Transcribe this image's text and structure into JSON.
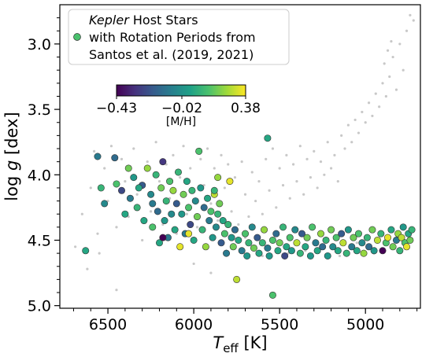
{
  "chart_data": {
    "type": "scatter",
    "xlabel_italic": "T",
    "xlabel_sub": "eff",
    "xlabel_rest": " [K]",
    "ylabel_pre": "log ",
    "ylabel_italic": "g",
    "ylabel_rest": " [dex]",
    "xlim": [
      6780,
      4680
    ],
    "ylim": [
      5.02,
      2.7
    ],
    "x_ticks": [
      6500,
      6000,
      5500,
      5000
    ],
    "x_tick_labels": [
      "6500",
      "6000",
      "5500",
      "5000"
    ],
    "y_ticks": [
      3.0,
      3.5,
      4.0,
      4.5,
      5.0
    ],
    "y_tick_labels": [
      "3.0",
      "3.5",
      "4.0",
      "4.5",
      "5.0"
    ],
    "legend": {
      "line1_italic": "Kepler",
      "line1_rest": " Host Stars",
      "line2": "with Rotation Periods from",
      "line3": "Santos et al. (2019, 2021)",
      "placement": "top-left"
    },
    "colorbar": {
      "ticks": [
        -0.43,
        -0.02,
        0.38
      ],
      "tick_labels": [
        "−0.43",
        "−0.02",
        "0.38"
      ],
      "label": "[M/H]",
      "colormap": "viridis"
    },
    "colors": {
      "background_points": "#c8c8c8",
      "marker_edge": "#333333",
      "viridis": [
        "#440154",
        "#46327e",
        "#365c8d",
        "#277f8e",
        "#1fa187",
        "#4ac16d",
        "#a0da39",
        "#fde725"
      ]
    },
    "series": [
      {
        "name": "Kepler Host Stars with Rotation Periods from Santos et al. (2019, 2021)",
        "points": [
          [
            6630,
            4.58,
            0.05
          ],
          [
            6560,
            3.86,
            -0.1
          ],
          [
            6540,
            4.1,
            0.1
          ],
          [
            6520,
            4.22,
            -0.05
          ],
          [
            6460,
            3.87,
            -0.15
          ],
          [
            6450,
            4.07,
            0.15
          ],
          [
            6420,
            4.12,
            -0.25
          ],
          [
            6400,
            4.3,
            0.05
          ],
          [
            6380,
            3.95,
            0.2
          ],
          [
            6370,
            4.18,
            -0.1
          ],
          [
            6350,
            4.02,
            0.0
          ],
          [
            6330,
            4.25,
            0.1
          ],
          [
            6300,
            4.08,
            -0.2
          ],
          [
            6290,
            4.35,
            0.05
          ],
          [
            6270,
            3.95,
            0.25
          ],
          [
            6250,
            4.15,
            -0.05
          ],
          [
            6240,
            4.4,
            0.15
          ],
          [
            6220,
            4.0,
            0.1
          ],
          [
            6210,
            4.28,
            -0.15
          ],
          [
            6200,
            4.52,
            0.05
          ],
          [
            6190,
            4.1,
            0.2
          ],
          [
            6180,
            3.9,
            -0.3
          ],
          [
            6170,
            4.35,
            0.0
          ],
          [
            6160,
            4.2,
            0.1
          ],
          [
            6150,
            4.48,
            -0.1
          ],
          [
            6140,
            4.05,
            0.15
          ],
          [
            6130,
            4.3,
            -0.05
          ],
          [
            6120,
            4.12,
            0.25
          ],
          [
            6110,
            4.42,
            0.05
          ],
          [
            6100,
            4.22,
            -0.2
          ],
          [
            6090,
            3.98,
            0.1
          ],
          [
            6080,
            4.55,
            0.35
          ],
          [
            6070,
            4.3,
            0.0
          ],
          [
            6060,
            4.15,
            0.2
          ],
          [
            6050,
            4.45,
            -0.1
          ],
          [
            6040,
            4.05,
            0.05
          ],
          [
            6030,
            4.25,
            0.15
          ],
          [
            6020,
            4.38,
            -0.25
          ],
          [
            6010,
            4.12,
            0.1
          ],
          [
            6000,
            4.5,
            0.05
          ],
          [
            5990,
            4.2,
            -0.05
          ],
          [
            5980,
            4.32,
            0.2
          ],
          [
            5970,
            3.82,
            0.15
          ],
          [
            5960,
            4.1,
            0.0
          ],
          [
            5950,
            4.42,
            0.1
          ],
          [
            5940,
            4.25,
            -0.15
          ],
          [
            5930,
            4.55,
            0.25
          ],
          [
            5920,
            4.18,
            0.05
          ],
          [
            5910,
            4.35,
            -0.1
          ],
          [
            5900,
            4.28,
            0.15
          ],
          [
            5890,
            4.48,
            0.0
          ],
          [
            5880,
            4.15,
            0.3
          ],
          [
            5870,
            4.4,
            -0.05
          ],
          [
            5860,
            4.3,
            0.1
          ],
          [
            5850,
            4.22,
            0.2
          ],
          [
            5840,
            4.52,
            -0.2
          ],
          [
            5830,
            4.35,
            0.05
          ],
          [
            5820,
            4.45,
            0.15
          ],
          [
            5810,
            4.6,
            -0.1
          ],
          [
            5800,
            4.38,
            0.1
          ],
          [
            5790,
            4.05,
            0.35
          ],
          [
            5780,
            4.48,
            0.0
          ],
          [
            5770,
            4.55,
            0.2
          ],
          [
            5760,
            4.42,
            -0.15
          ],
          [
            5750,
            4.8,
            0.3
          ],
          [
            5740,
            4.5,
            0.05
          ],
          [
            5720,
            4.58,
            -0.1
          ],
          [
            5700,
            4.45,
            0.15
          ],
          [
            5690,
            4.62,
            0.0
          ],
          [
            5680,
            4.52,
            0.1
          ],
          [
            5660,
            4.4,
            -0.05
          ],
          [
            5650,
            4.56,
            0.2
          ],
          [
            5630,
            4.48,
            -0.2
          ],
          [
            5620,
            4.6,
            0.05
          ],
          [
            5600,
            4.52,
            0.1
          ],
          [
            5590,
            4.42,
            0.25
          ],
          [
            5570,
            4.56,
            -0.1
          ],
          [
            5560,
            4.62,
            0.0
          ],
          [
            5540,
            4.5,
            0.15
          ],
          [
            5520,
            4.45,
            -0.15
          ],
          [
            5510,
            4.58,
            0.05
          ],
          [
            5500,
            4.52,
            0.2
          ],
          [
            5480,
            4.4,
            0.1
          ],
          [
            5470,
            4.62,
            -0.25
          ],
          [
            5460,
            4.55,
            0.05
          ],
          [
            5440,
            4.48,
            0.15
          ],
          [
            5430,
            4.58,
            0.0
          ],
          [
            5410,
            4.42,
            -0.05
          ],
          [
            5400,
            4.52,
            0.3
          ],
          [
            5380,
            4.6,
            0.1
          ],
          [
            5370,
            4.45,
            -0.2
          ],
          [
            5350,
            4.55,
            0.05
          ],
          [
            5340,
            4.48,
            0.2
          ],
          [
            5320,
            4.62,
            0.0
          ],
          [
            5310,
            4.4,
            0.15
          ],
          [
            5290,
            4.52,
            -0.1
          ],
          [
            5280,
            4.58,
            0.05
          ],
          [
            5260,
            4.45,
            0.25
          ],
          [
            5250,
            4.55,
            -0.15
          ],
          [
            5230,
            4.5,
            0.1
          ],
          [
            5220,
            4.62,
            0.0
          ],
          [
            5200,
            4.42,
            0.2
          ],
          [
            5190,
            4.55,
            -0.05
          ],
          [
            5170,
            4.48,
            0.15
          ],
          [
            5160,
            4.58,
            0.05
          ],
          [
            5140,
            4.45,
            -0.2
          ],
          [
            5130,
            4.52,
            0.3
          ],
          [
            5110,
            4.6,
            0.1
          ],
          [
            5100,
            4.42,
            0.0
          ],
          [
            5080,
            4.55,
            -0.1
          ],
          [
            5070,
            4.48,
            0.2
          ],
          [
            5050,
            4.58,
            0.05
          ],
          [
            5040,
            4.45,
            0.15
          ],
          [
            5020,
            4.52,
            -0.05
          ],
          [
            5010,
            4.6,
            0.25
          ],
          [
            4990,
            4.48,
            0.1
          ],
          [
            4980,
            4.55,
            -0.15
          ],
          [
            4960,
            4.42,
            0.2
          ],
          [
            4950,
            4.58,
            0.0
          ],
          [
            4930,
            4.5,
            0.3
          ],
          [
            4910,
            4.45,
            0.1
          ],
          [
            4900,
            4.58,
            -0.43
          ],
          [
            4880,
            4.52,
            0.15
          ],
          [
            4870,
            4.48,
            0.35
          ],
          [
            4850,
            4.42,
            0.05
          ],
          [
            4840,
            4.55,
            0.2
          ],
          [
            4820,
            4.5,
            -0.1
          ],
          [
            4810,
            4.45,
            0.25
          ],
          [
            4800,
            4.58,
            0.1
          ],
          [
            4790,
            4.48,
            0.3
          ],
          [
            4780,
            4.4,
            0.0
          ],
          [
            4770,
            4.52,
            0.15
          ],
          [
            4760,
            4.55,
            0.35
          ],
          [
            4750,
            4.45,
            0.05
          ],
          [
            4740,
            4.5,
            0.2
          ],
          [
            4730,
            4.42,
            0.1
          ],
          [
            5540,
            4.92,
            0.15
          ],
          [
            5570,
            3.72,
            0.05
          ],
          [
            6180,
            4.48,
            -0.43
          ],
          [
            6030,
            4.45,
            0.35
          ],
          [
            5860,
            4.02,
            0.25
          ],
          [
            5880,
            4.12,
            0.1
          ],
          [
            6240,
            4.22,
            -0.1
          ],
          [
            6320,
            4.1,
            0.05
          ]
        ]
      }
    ],
    "background_points": [
      [
        6690,
        4.55
      ],
      [
        6650,
        4.3
      ],
      [
        6600,
        4.1
      ],
      [
        6580,
        3.82
      ],
      [
        6560,
        4.45
      ],
      [
        6520,
        3.95
      ],
      [
        6500,
        4.2
      ],
      [
        6480,
        3.78
      ],
      [
        6450,
        4.4
      ],
      [
        6420,
        3.88
      ],
      [
        6400,
        4.05
      ],
      [
        6380,
        4.32
      ],
      [
        6350,
        3.8
      ],
      [
        6330,
        4.15
      ],
      [
        6300,
        4.5
      ],
      [
        6270,
        3.9
      ],
      [
        6250,
        4.28
      ],
      [
        6220,
        3.75
      ],
      [
        6200,
        4.05
      ],
      [
        6180,
        4.38
      ],
      [
        6160,
        3.92
      ],
      [
        6140,
        4.18
      ],
      [
        6120,
        3.85
      ],
      [
        6100,
        4.45
      ],
      [
        6080,
        4.02
      ],
      [
        6060,
        3.78
      ],
      [
        6040,
        4.3
      ],
      [
        6020,
        3.95
      ],
      [
        6000,
        4.12
      ],
      [
        5980,
        4.4
      ],
      [
        5960,
        3.88
      ],
      [
        5940,
        4.08
      ],
      [
        5920,
        3.8
      ],
      [
        5900,
        4.22
      ],
      [
        5880,
        3.95
      ],
      [
        5860,
        4.35
      ],
      [
        5840,
        3.85
      ],
      [
        5820,
        4.1
      ],
      [
        5800,
        3.92
      ],
      [
        5780,
        4.28
      ],
      [
        5760,
        4.02
      ],
      [
        5740,
        4.38
      ],
      [
        5720,
        3.9
      ],
      [
        5700,
        4.15
      ],
      [
        5680,
        4.32
      ],
      [
        5660,
        3.98
      ],
      [
        5640,
        4.2
      ],
      [
        5620,
        4.05
      ],
      [
        5600,
        4.3
      ],
      [
        5580,
        3.88
      ],
      [
        5560,
        4.12
      ],
      [
        5540,
        3.8
      ],
      [
        5520,
        4.25
      ],
      [
        5500,
        3.95
      ],
      [
        5480,
        4.08
      ],
      [
        5460,
        3.85
      ],
      [
        5440,
        4.18
      ],
      [
        5420,
        3.92
      ],
      [
        5400,
        4.05
      ],
      [
        5380,
        3.78
      ],
      [
        5360,
        4.15
      ],
      [
        5340,
        3.88
      ],
      [
        5320,
        4.02
      ],
      [
        5300,
        3.82
      ],
      [
        5280,
        4.1
      ],
      [
        5260,
        3.9
      ],
      [
        5240,
        4.0
      ],
      [
        5220,
        3.75
      ],
      [
        5200,
        3.95
      ],
      [
        5180,
        3.85
      ],
      [
        5160,
        4.05
      ],
      [
        5140,
        3.7
      ],
      [
        5120,
        3.8
      ],
      [
        5100,
        3.62
      ],
      [
        5080,
        3.75
      ],
      [
        5060,
        3.58
      ],
      [
        5040,
        3.68
      ],
      [
        5020,
        3.52
      ],
      [
        5000,
        3.6
      ],
      [
        4980,
        3.45
      ],
      [
        4960,
        3.55
      ],
      [
        4940,
        3.38
      ],
      [
        4920,
        3.48
      ],
      [
        4900,
        3.3
      ],
      [
        4890,
        3.15
      ],
      [
        4880,
        3.4
      ],
      [
        4870,
        3.05
      ],
      [
        4860,
        3.25
      ],
      [
        4850,
        2.98
      ],
      [
        4840,
        3.1
      ],
      [
        4820,
        3.35
      ],
      [
        4800,
        3.0
      ],
      [
        4780,
        3.2
      ],
      [
        4760,
        2.9
      ],
      [
        4740,
        2.78
      ],
      [
        4720,
        2.82
      ],
      [
        5700,
        4.48
      ],
      [
        5650,
        4.55
      ],
      [
        5600,
        4.62
      ],
      [
        5550,
        4.5
      ],
      [
        5450,
        4.6
      ],
      [
        5350,
        4.58
      ],
      [
        5250,
        4.55
      ],
      [
        5150,
        4.62
      ],
      [
        5050,
        4.52
      ],
      [
        4950,
        4.6
      ],
      [
        6550,
        4.6
      ],
      [
        6620,
        4.72
      ],
      [
        6000,
        4.68
      ],
      [
        5900,
        4.75
      ],
      [
        6450,
        4.88
      ]
    ]
  }
}
